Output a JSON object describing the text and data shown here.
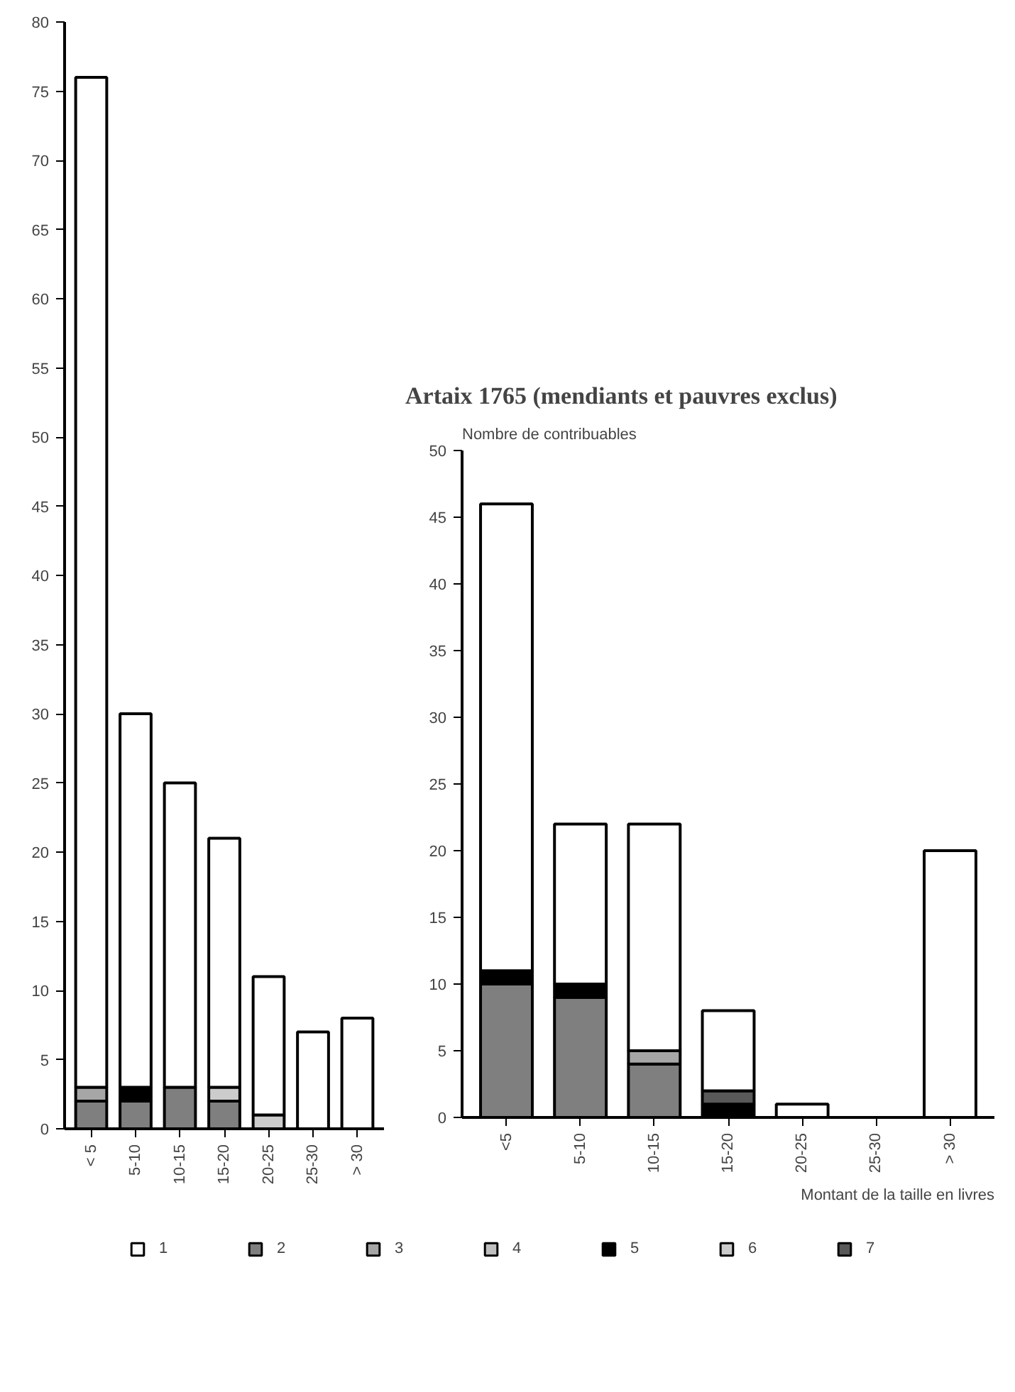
{
  "chart_data": [
    {
      "type": "bar",
      "stacked": true,
      "categories": [
        "< 5",
        "5-10",
        "10-15",
        "15-20",
        "20-25",
        "25-30",
        "> 30"
      ],
      "ylim": [
        0,
        80
      ],
      "yticks": [
        0,
        5,
        10,
        15,
        20,
        25,
        30,
        35,
        40,
        45,
        50,
        55,
        60,
        65,
        70,
        75,
        80
      ],
      "grid": false,
      "series": [
        {
          "color": "#7f7f7f",
          "values": [
            2,
            2,
            3,
            2,
            0,
            0,
            0
          ]
        },
        {
          "color": "#a6a6a6",
          "values": [
            1,
            0,
            0,
            0,
            0,
            0,
            0
          ]
        },
        {
          "color": "#000000",
          "values": [
            0,
            1,
            0,
            0,
            0,
            0,
            0
          ]
        },
        {
          "color": "#cccccc",
          "values": [
            0,
            0,
            0,
            1,
            1,
            0,
            0
          ]
        },
        {
          "color": "#ffffff",
          "values": [
            73,
            27,
            22,
            18,
            10,
            7,
            8
          ]
        }
      ]
    },
    {
      "type": "bar",
      "stacked": true,
      "title": "Artaix 1765 (mendiants et pauvres exclus)",
      "ylabel": "Nombre de contribuables",
      "xlabel": "Montant de la taille en livres",
      "categories": [
        "<5",
        "5-10",
        "10-15",
        "15-20",
        "20-25",
        "25-30",
        "> 30"
      ],
      "ylim": [
        0,
        50
      ],
      "yticks": [
        0,
        5,
        10,
        15,
        20,
        25,
        30,
        35,
        40,
        45,
        50
      ],
      "grid": false,
      "legend": "bottom",
      "series": [
        {
          "name": "2",
          "color": "#7f7f7f",
          "values": [
            10,
            9,
            4,
            0,
            0,
            0,
            0
          ]
        },
        {
          "name": "3",
          "color": "#a6a6a6",
          "values": [
            0,
            0,
            1,
            0,
            0,
            0,
            0
          ]
        },
        {
          "name": "4",
          "color": "#bfbfbf",
          "values": [
            0,
            0,
            0,
            0,
            0,
            0,
            0
          ]
        },
        {
          "name": "5",
          "color": "#000000",
          "values": [
            1,
            1,
            0,
            1,
            0,
            0,
            0
          ]
        },
        {
          "name": "6",
          "color": "#cccccc",
          "values": [
            0,
            0,
            0,
            0,
            0,
            0,
            0
          ]
        },
        {
          "name": "7",
          "color": "#595959",
          "values": [
            0,
            0,
            0,
            1,
            0,
            0,
            0
          ]
        },
        {
          "name": "1",
          "color": "#ffffff",
          "values": [
            35,
            12,
            17,
            6,
            1,
            0,
            20
          ]
        }
      ]
    }
  ]
}
